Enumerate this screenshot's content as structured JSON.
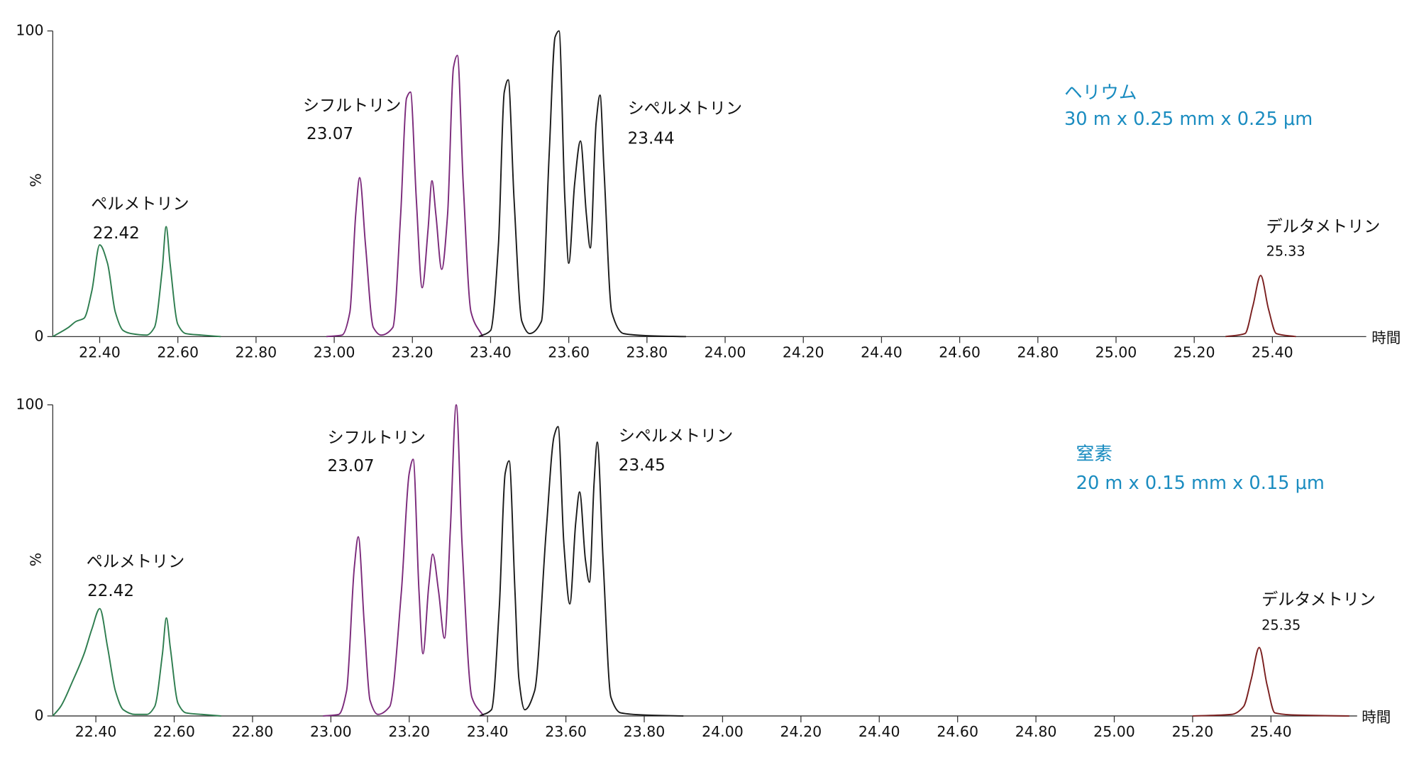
{
  "chart_data": [
    {
      "type": "line",
      "xlabel": "時間",
      "ylabel": "%",
      "xlim": [
        22.28,
        25.64
      ],
      "ylim": [
        0,
        100
      ],
      "yticks": [
        0,
        100
      ],
      "xticks": [
        {
          "value": 22.4,
          "label": "22.40"
        },
        {
          "value": 22.6,
          "label": "22.60"
        },
        {
          "value": 22.8,
          "label": "22.80"
        },
        {
          "value": 23.0,
          "label": "23.00"
        },
        {
          "value": 23.2,
          "label": "23.20"
        },
        {
          "value": 23.4,
          "label": "23.40"
        },
        {
          "value": 23.6,
          "label": "23.60"
        },
        {
          "value": 23.8,
          "label": "23.80"
        },
        {
          "value": 24.0,
          "label": "24.00"
        },
        {
          "value": 24.2,
          "label": "24.20"
        },
        {
          "value": 24.4,
          "label": "24.40"
        },
        {
          "value": 24.6,
          "label": "24.60"
        },
        {
          "value": 24.8,
          "label": "24.80"
        },
        {
          "value": 25.0,
          "label": "25.00"
        },
        {
          "value": 25.2,
          "label": "25.20"
        },
        {
          "value": 25.4,
          "label": "25.40"
        }
      ],
      "note_lines": [
        "ヘリウム",
        "30 m  x 0.25 mm x 0.25 μm"
      ],
      "annotations": [
        {
          "text": "ペルメトリン",
          "retention_time": 22.42
        },
        {
          "text": "シフルトリン",
          "retention_time": 23.07
        },
        {
          "text": "シペルメトリン",
          "retention_time": 23.44
        },
        {
          "text": "デルタメトリン",
          "retention_time": 25.33
        }
      ],
      "series": [
        {
          "color": "#2e7d4f",
          "x": [
            22.28,
            22.32,
            22.34,
            22.36,
            22.38,
            22.4,
            22.42,
            22.44,
            22.46,
            22.48,
            22.52,
            22.54,
            22.56,
            22.57,
            22.58,
            22.6,
            22.62,
            22.66,
            22.71
          ],
          "values": [
            0,
            3,
            5,
            6,
            15,
            30,
            24,
            8,
            2,
            1,
            0.5,
            3,
            22,
            36,
            24,
            4,
            1,
            0.5,
            0
          ]
        },
        {
          "color": "#7b2a7b",
          "x": [
            22.98,
            23.02,
            23.04,
            23.055,
            23.065,
            23.08,
            23.1,
            23.12,
            23.15,
            23.17,
            23.185,
            23.195,
            23.21,
            23.225,
            23.24,
            23.25,
            23.26,
            23.275,
            23.29,
            23.305,
            23.315,
            23.33,
            23.35,
            23.38
          ],
          "values": [
            0,
            0.5,
            8,
            40,
            52,
            30,
            3,
            0.5,
            3,
            40,
            78,
            80,
            45,
            16,
            35,
            51,
            40,
            22,
            40,
            88,
            92,
            50,
            8,
            0
          ]
        },
        {
          "color": "#1a1a1a",
          "x": [
            23.37,
            23.4,
            23.42,
            23.435,
            23.445,
            23.46,
            23.48,
            23.5,
            23.53,
            23.55,
            23.565,
            23.575,
            23.59,
            23.6,
            23.615,
            23.63,
            23.645,
            23.655,
            23.67,
            23.68,
            23.69,
            23.71,
            23.74,
            23.8,
            23.9
          ],
          "values": [
            0,
            2,
            30,
            80,
            84,
            45,
            5,
            1,
            5,
            60,
            98,
            100,
            45,
            24,
            50,
            64,
            40,
            29,
            70,
            79,
            55,
            8,
            1,
            0.3,
            0
          ]
        },
        {
          "color": "#7b2020",
          "x": [
            25.28,
            25.33,
            25.35,
            25.37,
            25.39,
            25.41,
            25.46
          ],
          "values": [
            0,
            1,
            10,
            20,
            9,
            1,
            0
          ]
        }
      ]
    },
    {
      "type": "line",
      "xlabel": "時間",
      "ylabel": "%",
      "xlim": [
        22.29,
        25.62
      ],
      "ylim": [
        0,
        100
      ],
      "yticks": [
        0,
        100
      ],
      "xticks": [
        {
          "value": 22.4,
          "label": "22.40"
        },
        {
          "value": 22.6,
          "label": "22.60"
        },
        {
          "value": 22.8,
          "label": "22.80"
        },
        {
          "value": 23.0,
          "label": "23.00"
        },
        {
          "value": 23.2,
          "label": "23.20"
        },
        {
          "value": 23.4,
          "label": "23.40"
        },
        {
          "value": 23.6,
          "label": "23.60"
        },
        {
          "value": 23.8,
          "label": "23.80"
        },
        {
          "value": 24.0,
          "label": "24.00"
        },
        {
          "value": 24.2,
          "label": "24.20"
        },
        {
          "value": 24.4,
          "label": "24.40"
        },
        {
          "value": 24.6,
          "label": "24.60"
        },
        {
          "value": 24.8,
          "label": "24.80"
        },
        {
          "value": 25.0,
          "label": "25.00"
        },
        {
          "value": 25.2,
          "label": "25.20"
        },
        {
          "value": 25.4,
          "label": "25.40"
        }
      ],
      "note_lines": [
        "窒素",
        "20 m x 0.15 mm x 0.15 μm"
      ],
      "annotations": [
        {
          "text": "ペルメトリン",
          "retention_time": 22.42
        },
        {
          "text": "シフルトリン",
          "retention_time": 23.07
        },
        {
          "text": "シペルメトリン",
          "retention_time": 23.45
        },
        {
          "text": "デルタメトリン",
          "retention_time": 25.35
        }
      ],
      "series": [
        {
          "color": "#2e7d4f",
          "x": [
            22.29,
            22.31,
            22.34,
            22.37,
            22.39,
            22.41,
            22.43,
            22.45,
            22.47,
            22.5,
            22.53,
            22.55,
            22.57,
            22.58,
            22.59,
            22.61,
            22.63,
            22.67,
            22.72
          ],
          "values": [
            0,
            3,
            11,
            20,
            28,
            34.5,
            22,
            8,
            2,
            0.5,
            0.5,
            3,
            20,
            31.5,
            22,
            4,
            1,
            0.5,
            0
          ]
        },
        {
          "color": "#7b2a7b",
          "x": [
            22.98,
            23.02,
            23.04,
            23.06,
            23.07,
            23.085,
            23.1,
            23.12,
            23.15,
            23.18,
            23.2,
            23.21,
            23.225,
            23.235,
            23.25,
            23.26,
            23.275,
            23.29,
            23.305,
            23.32,
            23.335,
            23.36,
            23.39
          ],
          "values": [
            0,
            0.5,
            8,
            48,
            57.6,
            30,
            5,
            0.5,
            3,
            40,
            78,
            82.5,
            40,
            20,
            42,
            52,
            40,
            25,
            60,
            100,
            55,
            6,
            0
          ]
        },
        {
          "color": "#1a1a1a",
          "x": [
            23.38,
            23.41,
            23.43,
            23.445,
            23.455,
            23.47,
            23.48,
            23.495,
            23.52,
            23.55,
            23.57,
            23.58,
            23.595,
            23.61,
            23.625,
            23.635,
            23.65,
            23.66,
            23.672,
            23.68,
            23.695,
            23.715,
            23.74,
            23.8,
            23.9
          ],
          "values": [
            0,
            2,
            35,
            78,
            82,
            40,
            12,
            2,
            8,
            60,
            90,
            93,
            55,
            36,
            62,
            72,
            50,
            43,
            75,
            88,
            50,
            6,
            1,
            0.3,
            0
          ]
        },
        {
          "color": "#7b2020",
          "x": [
            25.2,
            25.3,
            25.33,
            25.35,
            25.37,
            25.39,
            25.41,
            25.46,
            25.6
          ],
          "values": [
            0,
            0.5,
            3,
            12,
            22,
            10,
            1,
            0.3,
            0
          ]
        }
      ]
    }
  ]
}
